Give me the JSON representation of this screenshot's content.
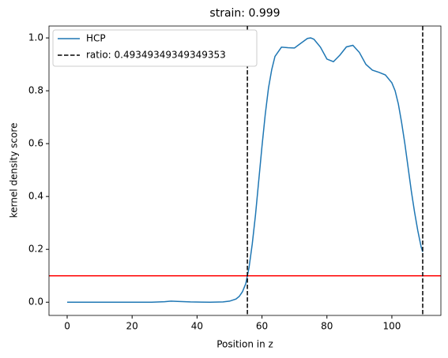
{
  "chart_data": {
    "type": "line",
    "title": "strain: 0.999",
    "x_label": "Position in z",
    "y_label": "kernel density score",
    "x": [
      0,
      10,
      20,
      26,
      30,
      32,
      34,
      38,
      44,
      48,
      50,
      52,
      53,
      54,
      55,
      56,
      57,
      58,
      59,
      60,
      61,
      62,
      63,
      64,
      66,
      68,
      70,
      72,
      74,
      75,
      76,
      78,
      80,
      82,
      84,
      86,
      88,
      90,
      92,
      94,
      96,
      98,
      100,
      101,
      102,
      103,
      104,
      105,
      106,
      107,
      108,
      109,
      109.5
    ],
    "series": [
      {
        "name": "HCP",
        "color": "#1f77b4",
        "values": [
          0,
          0,
          0,
          0,
          0.002,
          0.004,
          0.003,
          0.001,
          0,
          0.001,
          0.004,
          0.012,
          0.022,
          0.04,
          0.07,
          0.13,
          0.22,
          0.33,
          0.46,
          0.59,
          0.71,
          0.81,
          0.88,
          0.93,
          0.965,
          0.963,
          0.962,
          0.98,
          0.998,
          1.0,
          0.995,
          0.965,
          0.92,
          0.91,
          0.935,
          0.966,
          0.972,
          0.945,
          0.9,
          0.878,
          0.87,
          0.86,
          0.83,
          0.8,
          0.75,
          0.68,
          0.6,
          0.51,
          0.42,
          0.34,
          0.27,
          0.21,
          0.19
        ]
      }
    ],
    "vlines": {
      "name": "ratio: 0.49349349349349353",
      "color": "#000000",
      "values": [
        55.5,
        109.5
      ]
    },
    "hline": {
      "value": 0.1,
      "color": "#ff0000"
    },
    "xlim": [
      -5.6,
      115.1
    ],
    "ylim": [
      -0.05,
      1.045
    ],
    "xticks": [
      0,
      20,
      40,
      60,
      80,
      100
    ],
    "yticks": [
      {
        "value": 0,
        "label": "0.0"
      },
      0.2,
      0.4,
      0.6,
      0.8,
      {
        "value": 1,
        "label": "1.0"
      }
    ],
    "legend": "upper left"
  }
}
